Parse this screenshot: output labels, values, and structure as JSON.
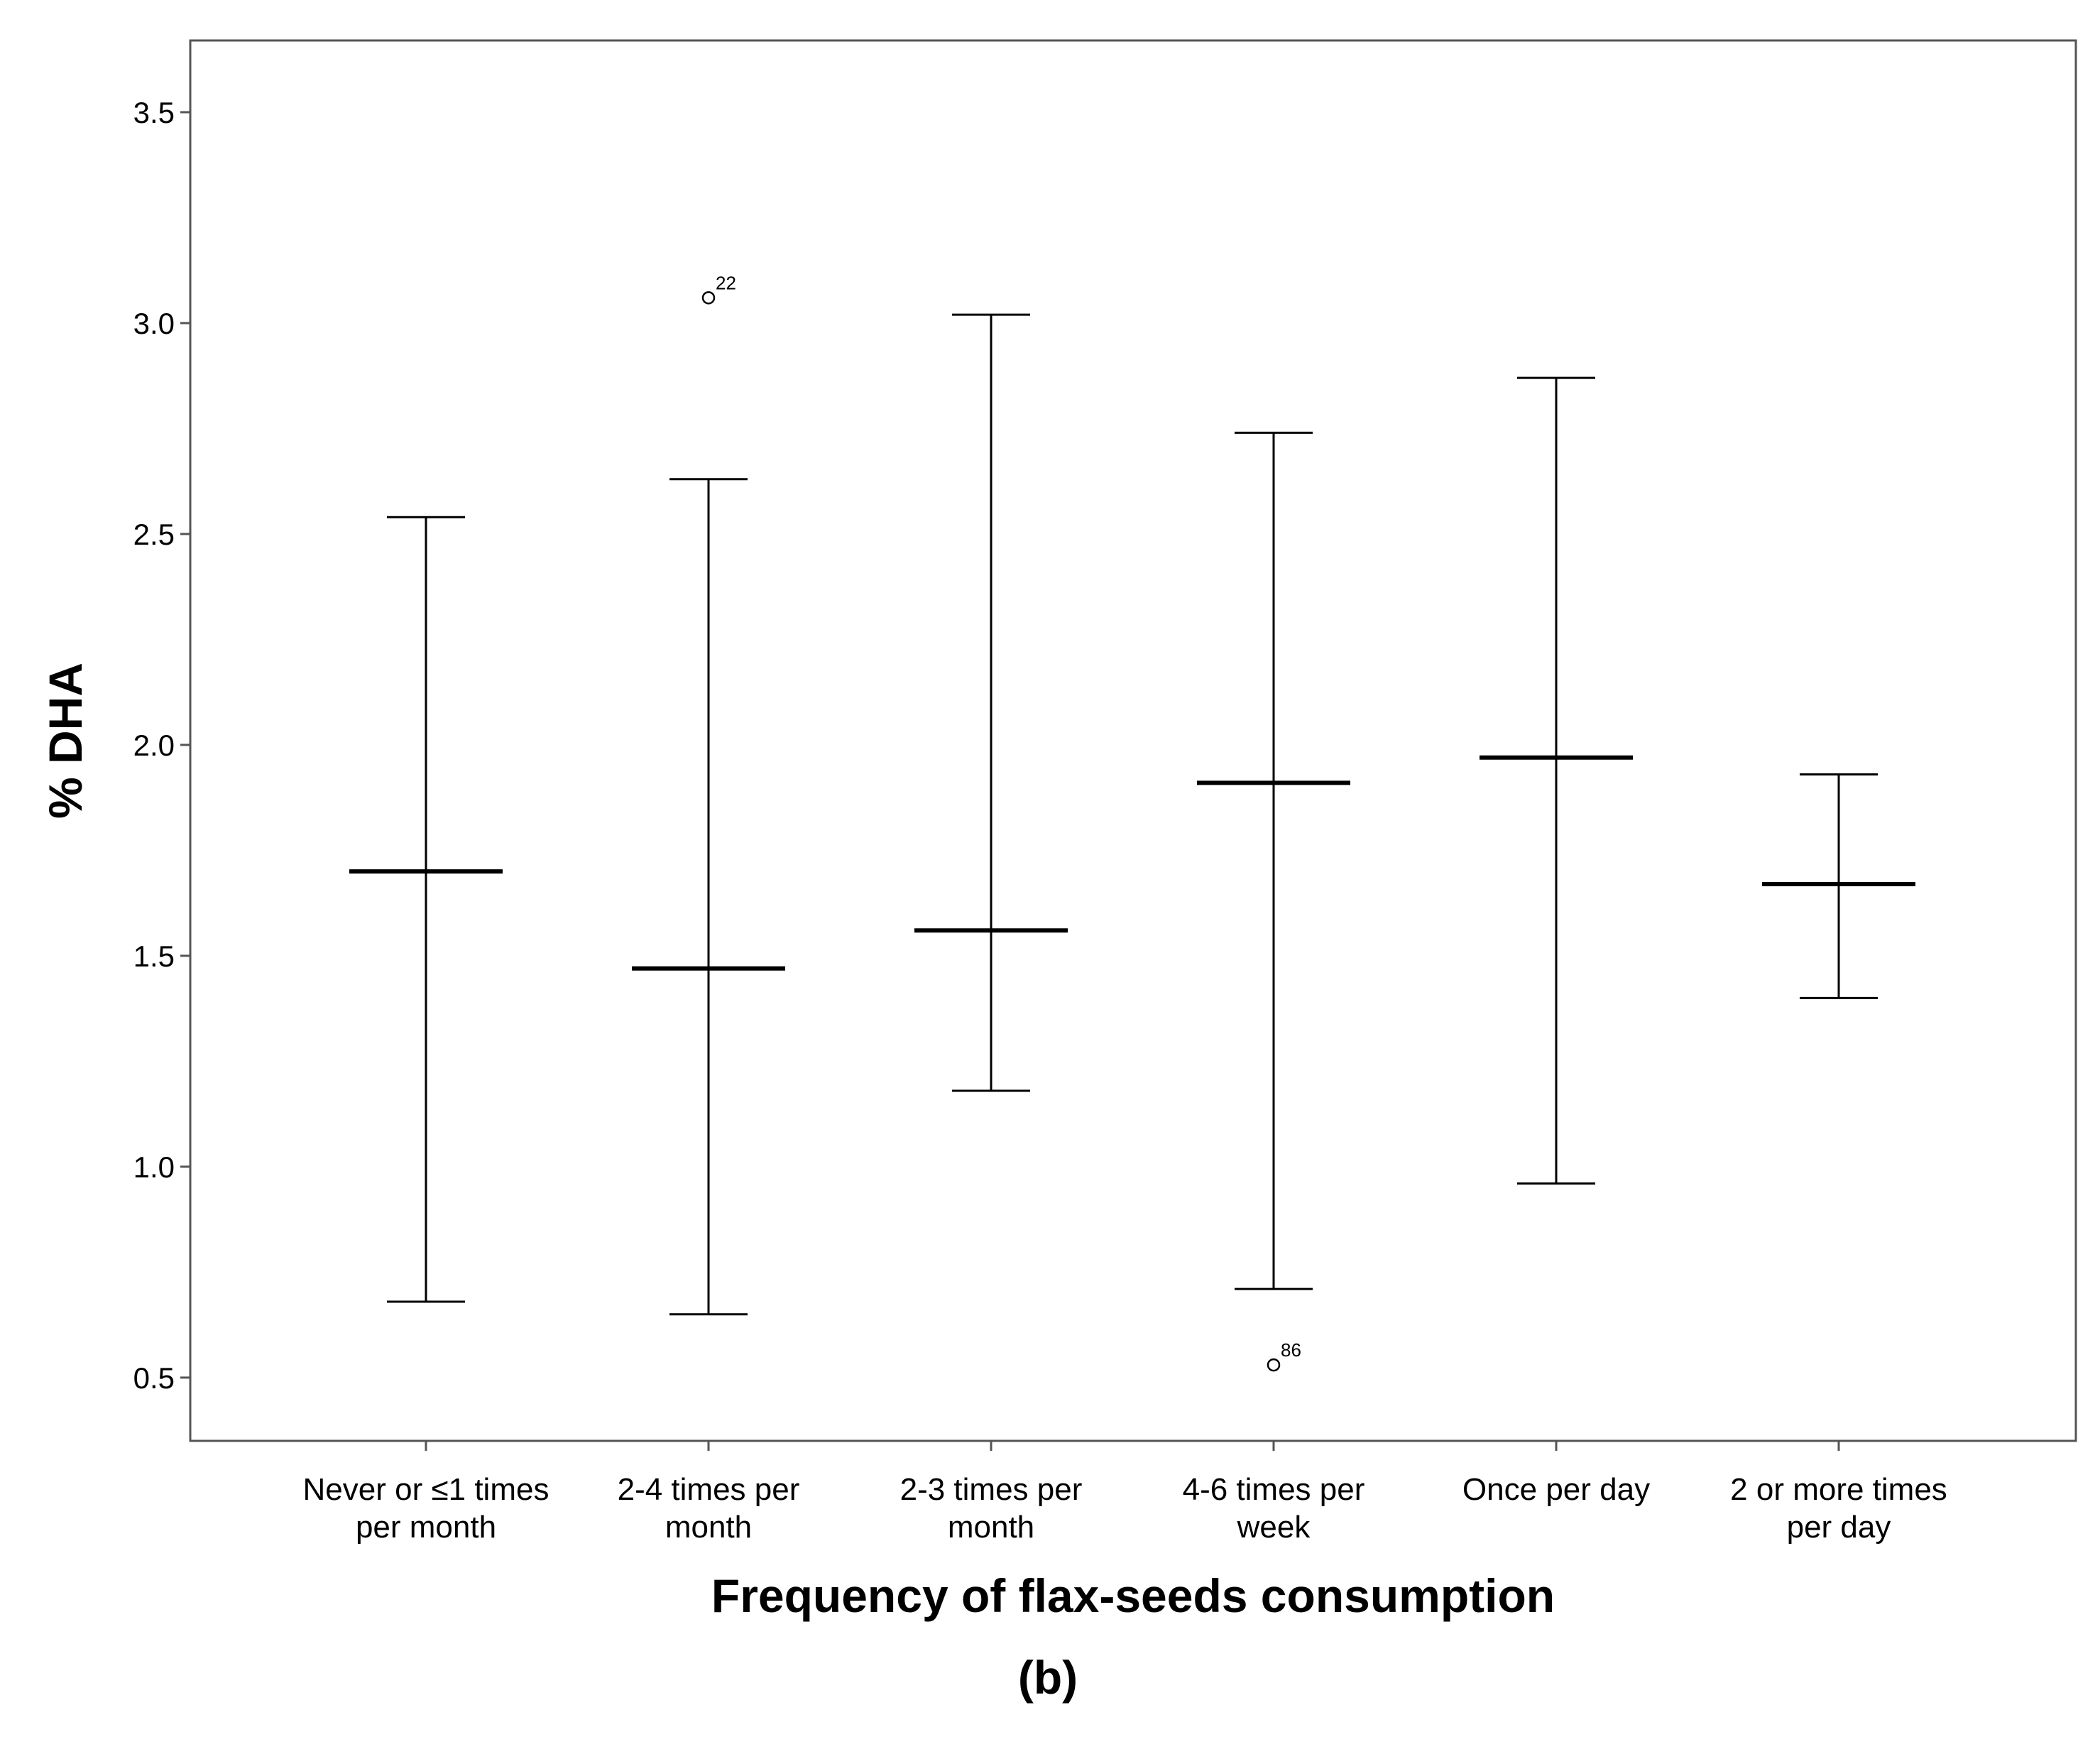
{
  "chart_data": {
    "type": "boxplot",
    "xlabel": "Frequency of flax-seeds consumption",
    "ylabel": "% DHA",
    "panel_label": "(b)",
    "ylim": [
      0.35,
      3.67
    ],
    "yticks": [
      "0.5",
      "1.0",
      "1.5",
      "2.0",
      "2.5",
      "3.0",
      "3.5"
    ],
    "categories": [
      [
        "Never or ≤1 times",
        "per month"
      ],
      [
        "2-4 times per",
        "month"
      ],
      [
        "2-3 times per",
        "month"
      ],
      [
        "4-6 times per",
        "week"
      ],
      [
        "Once per day",
        ""
      ],
      [
        "2 or more times",
        "per day"
      ]
    ],
    "boxes": [
      {
        "min": 0.68,
        "median": 1.7,
        "max": 2.54
      },
      {
        "min": 0.65,
        "median": 1.47,
        "max": 2.63
      },
      {
        "min": 1.18,
        "median": 1.56,
        "max": 3.02
      },
      {
        "min": 0.71,
        "median": 1.91,
        "max": 2.74
      },
      {
        "min": 0.96,
        "median": 1.97,
        "max": 2.87
      },
      {
        "min": 1.4,
        "median": 1.67,
        "max": 1.93
      }
    ],
    "outliers": [
      {
        "category_index": 1,
        "value": 3.06,
        "label": "22"
      },
      {
        "category_index": 3,
        "value": 0.53,
        "label": "86"
      }
    ],
    "grid": false,
    "legend": "none"
  }
}
